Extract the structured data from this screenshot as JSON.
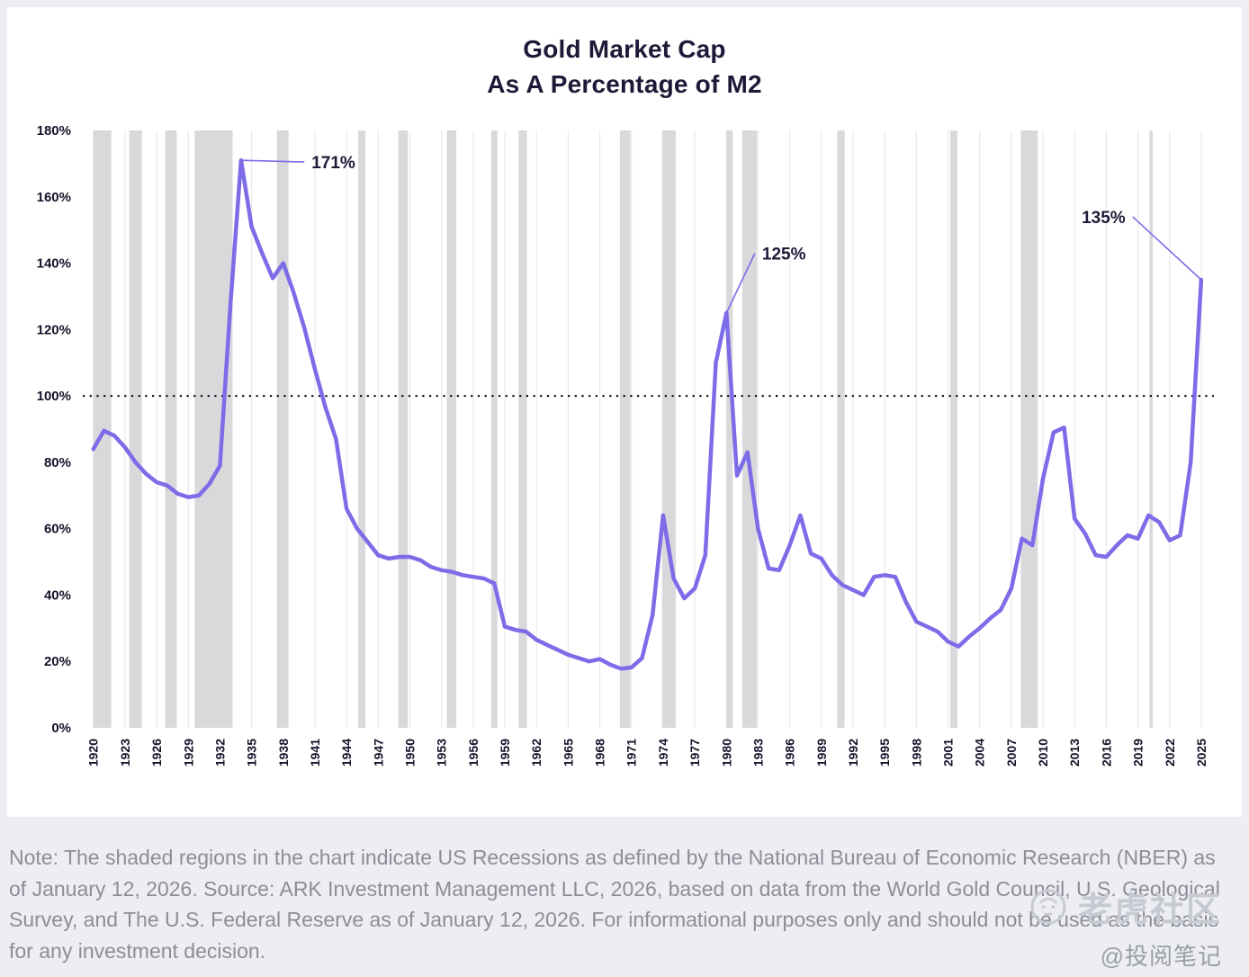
{
  "page": {
    "background": "#edeef2"
  },
  "chart_data": {
    "type": "line",
    "title": "Gold Market Cap As A Percentage of M2",
    "title_line1": "Gold Market Cap",
    "title_line2": "As A Percentage of M2",
    "xlabel": "",
    "ylabel": "",
    "ylim": [
      0,
      180
    ],
    "y_ticks": [
      0,
      20,
      40,
      60,
      80,
      100,
      120,
      140,
      160,
      180
    ],
    "x_range": [
      1919,
      2026.2
    ],
    "x_ticks": [
      1920,
      1923,
      1926,
      1929,
      1932,
      1935,
      1938,
      1941,
      1944,
      1947,
      1950,
      1953,
      1956,
      1959,
      1962,
      1965,
      1968,
      1971,
      1974,
      1977,
      1980,
      1983,
      1986,
      1989,
      1992,
      1995,
      1998,
      2001,
      2004,
      2007,
      2010,
      2013,
      2016,
      2019,
      2022,
      2025
    ],
    "x_start": 1920,
    "x_step": 1,
    "reference_line": 100,
    "grid": "vertical",
    "legend": "none",
    "colors": {
      "line": "#7d6ce8",
      "recession_band": "#d9d9dc",
      "gridline": "#e6e6ea",
      "reference": "#15151d",
      "label": "#15142b"
    },
    "series": [
      {
        "name": "Gold market cap as a percentage of M2",
        "values": [
          84,
          89.5,
          88,
          84.5,
          80,
          76.5,
          74,
          73,
          70.5,
          69.5,
          70,
          73.5,
          79,
          128,
          171,
          151,
          143,
          135.5,
          140,
          131,
          120.5,
          108,
          96.5,
          87,
          66,
          60,
          56,
          52,
          51,
          51.5,
          51.5,
          50.5,
          48.5,
          47.5,
          47,
          46,
          45.5,
          45,
          43.5,
          30.5,
          29.5,
          29,
          26.5,
          25,
          23.5,
          22,
          21,
          20,
          20.7,
          19,
          17.8,
          18.2,
          21,
          34,
          64,
          45,
          39,
          42,
          52,
          110,
          125,
          76,
          83,
          60,
          48,
          47.5,
          55,
          64,
          52.5,
          51,
          46,
          43,
          41.5,
          40,
          45.5,
          46,
          45.5,
          38,
          32,
          30.5,
          29,
          26,
          24.5,
          27.5,
          30,
          33,
          35.5,
          42,
          57,
          55,
          75,
          89,
          90.5,
          63,
          58.5,
          52,
          51.5,
          55,
          58,
          57,
          64,
          62,
          56.5,
          58,
          80,
          135
        ]
      }
    ],
    "recessions": [
      [
        1920.0,
        1921.7
      ],
      [
        1923.4,
        1924.6
      ],
      [
        1926.8,
        1927.9
      ],
      [
        1929.6,
        1933.2
      ],
      [
        1937.4,
        1938.5
      ],
      [
        1945.1,
        1945.8
      ],
      [
        1948.9,
        1949.8
      ],
      [
        1953.5,
        1954.4
      ],
      [
        1957.7,
        1958.3
      ],
      [
        1960.3,
        1961.1
      ],
      [
        1969.9,
        1970.9
      ],
      [
        1973.9,
        1975.2
      ],
      [
        1980.0,
        1980.6
      ],
      [
        1981.5,
        1982.9
      ],
      [
        1990.5,
        1991.2
      ],
      [
        2001.2,
        2001.9
      ],
      [
        2007.9,
        2009.5
      ],
      [
        2020.1,
        2020.4
      ]
    ],
    "annotations": [
      {
        "label": "171%",
        "point": [
          1934,
          171
        ],
        "label_pos": [
          1940,
          170.5
        ],
        "anchor": "start"
      },
      {
        "label": "125%",
        "point": [
          1980,
          125
        ],
        "label_pos": [
          1982.7,
          143
        ],
        "anchor": "start"
      },
      {
        "label": "135%",
        "point": [
          2025,
          135
        ],
        "label_pos": [
          2018.5,
          154
        ],
        "anchor": "end"
      }
    ]
  },
  "note": "Note: The shaded regions in the chart indicate US Recessions as defined by the National Bureau of Economic Research (NBER) as of January 12, 2026. Source: ARK Investment Management LLC, 2026, based on data from the World Gold Council, U.S. Geological Survey, and The U.S. Federal Reserve as of January 12, 2026. For informational purposes only and should not be used as the basis for any investment decision.",
  "watermark": {
    "brand": "老虎社区",
    "handle": "@投阅笔记"
  }
}
